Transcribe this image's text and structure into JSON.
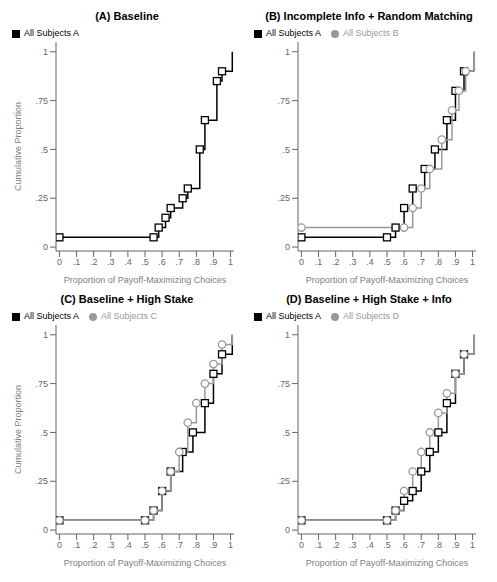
{
  "chart_data": [
    {
      "type": "line",
      "title": "(A) Baseline",
      "xlabel": "Proportion of Payoff-Maximizing Choices",
      "ylabel": "Cumulative Proportion",
      "line_style": "step",
      "legend": "upper left",
      "grid": false,
      "xlim": [
        -0.02,
        1.02
      ],
      "ylim": [
        -0.02,
        1.05
      ],
      "xticks": [
        0,
        {
          "value": 0.1,
          "label": ".1"
        },
        {
          "value": 0.2,
          "label": ".2"
        },
        {
          "value": 0.3,
          "label": ".3"
        },
        {
          "value": 0.4,
          "label": ".4"
        },
        {
          "value": 0.5,
          "label": ".5"
        },
        {
          "value": 0.6,
          "label": ".6"
        },
        {
          "value": 0.7,
          "label": ".7"
        },
        {
          "value": 0.8,
          "label": ".8"
        },
        {
          "value": 0.9,
          "label": ".9"
        },
        1
      ],
      "yticks": [
        0,
        {
          "value": 0.25,
          "label": ".25"
        },
        {
          "value": 0.5,
          "label": ".5"
        },
        {
          "value": 0.75,
          "label": ".75"
        },
        1
      ],
      "series": [
        {
          "name": "All Subjects A",
          "color": "#000000",
          "marker": "square",
          "x": [
            0.0,
            0.55,
            0.58,
            0.62,
            0.65,
            0.72,
            0.75,
            0.82,
            0.85,
            0.92,
            0.95,
            1.01
          ],
          "values": [
            0.05,
            0.05,
            0.1,
            0.15,
            0.2,
            0.25,
            0.3,
            0.5,
            0.65,
            0.85,
            0.9,
            1.0
          ]
        }
      ]
    },
    {
      "type": "line",
      "title": "(B) Incomplete Info + Random Matching",
      "xlabel": "Proportion of Payoff-Maximizing Choices",
      "line_style": "step",
      "legend": "upper left",
      "grid": false,
      "xlim": [
        -0.02,
        1.02
      ],
      "ylim": [
        -0.02,
        1.05
      ],
      "xticks": [
        0,
        {
          "value": 0.1,
          "label": ".1"
        },
        {
          "value": 0.2,
          "label": ".2"
        },
        {
          "value": 0.3,
          "label": ".3"
        },
        {
          "value": 0.4,
          "label": ".4"
        },
        {
          "value": 0.5,
          "label": ".5"
        },
        {
          "value": 0.6,
          "label": ".6"
        },
        {
          "value": 0.7,
          "label": ".7"
        },
        {
          "value": 0.8,
          "label": ".8"
        },
        {
          "value": 0.9,
          "label": ".9"
        },
        1
      ],
      "yticks": [
        0,
        {
          "value": 0.25,
          "label": ".25"
        },
        {
          "value": 0.5,
          "label": ".5"
        },
        {
          "value": 0.75,
          "label": ".75"
        },
        1
      ],
      "series": [
        {
          "name": "All Subjects A",
          "color": "#000000",
          "marker": "square",
          "x": [
            0.0,
            0.5,
            0.55,
            0.6,
            0.65,
            0.72,
            0.78,
            0.85,
            0.9,
            0.95,
            1.01
          ],
          "values": [
            0.05,
            0.05,
            0.1,
            0.2,
            0.3,
            0.4,
            0.5,
            0.65,
            0.8,
            0.9,
            1.0
          ]
        },
        {
          "name": "All Subjects B",
          "color": "#999999",
          "marker": "circle",
          "x": [
            0.0,
            0.6,
            0.65,
            0.7,
            0.75,
            0.82,
            0.88,
            0.92,
            0.96,
            1.01
          ],
          "values": [
            0.1,
            0.1,
            0.2,
            0.3,
            0.4,
            0.55,
            0.7,
            0.8,
            0.9,
            1.0
          ]
        }
      ]
    },
    {
      "type": "line",
      "title": "(C) Baseline + High Stake",
      "xlabel": "Proportion of Payoff-Maximizing Choices",
      "ylabel": "Cumulative Proportion",
      "line_style": "step",
      "legend": "upper left",
      "grid": false,
      "xlim": [
        -0.02,
        1.02
      ],
      "ylim": [
        -0.02,
        1.05
      ],
      "xticks": [
        0,
        {
          "value": 0.1,
          "label": ".1"
        },
        {
          "value": 0.2,
          "label": ".2"
        },
        {
          "value": 0.3,
          "label": ".3"
        },
        {
          "value": 0.4,
          "label": ".4"
        },
        {
          "value": 0.5,
          "label": ".5"
        },
        {
          "value": 0.6,
          "label": ".6"
        },
        {
          "value": 0.7,
          "label": ".7"
        },
        {
          "value": 0.8,
          "label": ".8"
        },
        {
          "value": 0.9,
          "label": ".9"
        },
        1
      ],
      "yticks": [
        0,
        {
          "value": 0.25,
          "label": ".25"
        },
        {
          "value": 0.5,
          "label": ".5"
        },
        {
          "value": 0.75,
          "label": ".75"
        },
        1
      ],
      "series": [
        {
          "name": "All Subjects A",
          "color": "#000000",
          "marker": "square",
          "x": [
            0.0,
            0.5,
            0.55,
            0.6,
            0.65,
            0.72,
            0.78,
            0.85,
            0.9,
            0.95,
            1.01
          ],
          "values": [
            0.05,
            0.05,
            0.1,
            0.2,
            0.3,
            0.4,
            0.5,
            0.65,
            0.8,
            0.9,
            1.0
          ]
        },
        {
          "name": "All Subjects C",
          "color": "#999999",
          "marker": "circle",
          "x": [
            0.0,
            0.5,
            0.55,
            0.6,
            0.65,
            0.7,
            0.75,
            0.8,
            0.85,
            0.9,
            0.95,
            1.01
          ],
          "values": [
            0.05,
            0.05,
            0.1,
            0.2,
            0.3,
            0.4,
            0.55,
            0.65,
            0.75,
            0.85,
            0.95,
            1.0
          ]
        }
      ]
    },
    {
      "type": "line",
      "title": "(D) Baseline + High Stake + Info",
      "xlabel": "Proportion of Payoff-Maximizing Choices",
      "line_style": "step",
      "legend": "upper left",
      "grid": false,
      "xlim": [
        -0.02,
        1.02
      ],
      "ylim": [
        -0.02,
        1.05
      ],
      "xticks": [
        0,
        {
          "value": 0.1,
          "label": ".1"
        },
        {
          "value": 0.2,
          "label": ".2"
        },
        {
          "value": 0.3,
          "label": ".3"
        },
        {
          "value": 0.4,
          "label": ".4"
        },
        {
          "value": 0.5,
          "label": ".5"
        },
        {
          "value": 0.6,
          "label": ".6"
        },
        {
          "value": 0.7,
          "label": ".7"
        },
        {
          "value": 0.8,
          "label": ".8"
        },
        {
          "value": 0.9,
          "label": ".9"
        },
        1
      ],
      "yticks": [
        0,
        {
          "value": 0.25,
          "label": ".25"
        },
        {
          "value": 0.5,
          "label": ".5"
        },
        {
          "value": 0.75,
          "label": ".75"
        },
        1
      ],
      "series": [
        {
          "name": "All Subjects A",
          "color": "#000000",
          "marker": "square",
          "x": [
            0.0,
            0.5,
            0.55,
            0.6,
            0.65,
            0.7,
            0.75,
            0.8,
            0.85,
            0.9,
            0.95,
            1.01
          ],
          "values": [
            0.05,
            0.05,
            0.1,
            0.15,
            0.2,
            0.3,
            0.4,
            0.5,
            0.65,
            0.8,
            0.9,
            1.0
          ]
        },
        {
          "name": "All Subjects D",
          "color": "#999999",
          "marker": "circle",
          "x": [
            0.0,
            0.5,
            0.55,
            0.6,
            0.65,
            0.7,
            0.75,
            0.8,
            0.85,
            0.9,
            0.95,
            1.01
          ],
          "values": [
            0.05,
            0.05,
            0.1,
            0.2,
            0.3,
            0.4,
            0.5,
            0.6,
            0.7,
            0.8,
            0.9,
            1.0
          ]
        }
      ]
    }
  ]
}
